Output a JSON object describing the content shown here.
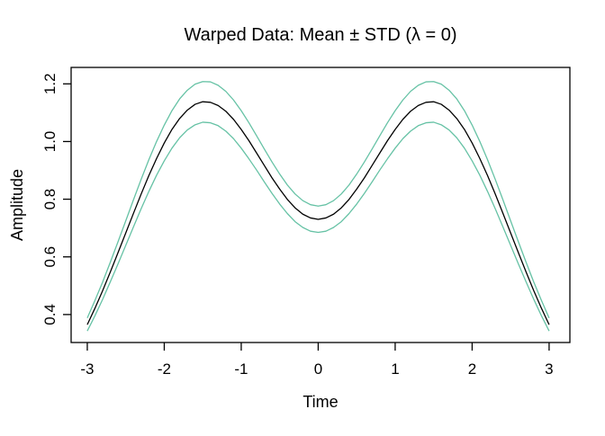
{
  "figure": {
    "background": "#ffffff",
    "text_color": "#000000"
  },
  "chart_data": {
    "type": "line",
    "title": "Warped Data: Mean ± STD (λ = 0)",
    "xlabel": "Time",
    "ylabel": "Amplitude",
    "grid": false,
    "legend": "none",
    "xlim": [
      -3.21,
      3.27
    ],
    "ylim": [
      0.303,
      1.257
    ],
    "xticks": [
      -3,
      -2,
      -1,
      0,
      1,
      2,
      3
    ],
    "xtick_labels": [
      "-3",
      "-2",
      "-1",
      "0",
      "1",
      "2",
      "3"
    ],
    "yticks": [
      0.4,
      0.6,
      0.8,
      1.0,
      1.2
    ],
    "ytick_labels": [
      "0.4",
      "0.6",
      "0.8",
      "1.0",
      "1.2"
    ],
    "x": [
      -3.0,
      -2.9,
      -2.8,
      -2.7,
      -2.6,
      -2.5,
      -2.4,
      -2.3,
      -2.2,
      -2.1,
      -2.0,
      -1.9,
      -1.8,
      -1.7,
      -1.6,
      -1.5,
      -1.4,
      -1.3,
      -1.2,
      -1.1,
      -1.0,
      -0.9,
      -0.8,
      -0.7,
      -0.6,
      -0.5,
      -0.4,
      -0.3,
      -0.2,
      -0.1,
      0.0,
      0.1,
      0.2,
      0.3,
      0.4,
      0.5,
      0.6,
      0.7,
      0.8,
      0.9,
      1.0,
      1.1,
      1.2,
      1.3,
      1.4,
      1.5,
      1.6,
      1.7,
      1.8,
      1.9,
      2.0,
      2.1,
      2.2,
      2.3,
      2.4,
      2.5,
      2.6,
      2.7,
      2.8,
      2.9,
      3.0
    ],
    "series": [
      {
        "name": "Mean + STD",
        "color": "#66C2A5",
        "values": [
          0.388,
          0.449,
          0.513,
          0.582,
          0.653,
          0.725,
          0.798,
          0.869,
          0.937,
          1.0,
          1.057,
          1.107,
          1.148,
          1.178,
          1.199,
          1.208,
          1.207,
          1.195,
          1.174,
          1.144,
          1.107,
          1.065,
          1.02,
          0.974,
          0.929,
          0.887,
          0.849,
          0.818,
          0.795,
          0.781,
          0.776,
          0.781,
          0.795,
          0.818,
          0.849,
          0.887,
          0.929,
          0.974,
          1.02,
          1.065,
          1.107,
          1.144,
          1.174,
          1.195,
          1.207,
          1.208,
          1.199,
          1.178,
          1.148,
          1.107,
          1.057,
          1.0,
          0.937,
          0.869,
          0.798,
          0.725,
          0.653,
          0.582,
          0.513,
          0.449,
          0.388
        ]
      },
      {
        "name": "Mean",
        "color": "#000000",
        "values": [
          0.365,
          0.422,
          0.483,
          0.548,
          0.615,
          0.683,
          0.751,
          0.818,
          0.882,
          0.941,
          0.995,
          1.042,
          1.08,
          1.109,
          1.129,
          1.138,
          1.136,
          1.125,
          1.105,
          1.077,
          1.042,
          1.003,
          0.96,
          0.917,
          0.874,
          0.835,
          0.799,
          0.77,
          0.748,
          0.735,
          0.73,
          0.735,
          0.748,
          0.77,
          0.799,
          0.835,
          0.874,
          0.917,
          0.96,
          1.003,
          1.042,
          1.077,
          1.105,
          1.125,
          1.136,
          1.138,
          1.129,
          1.109,
          1.08,
          1.042,
          0.995,
          0.941,
          0.882,
          0.818,
          0.751,
          0.683,
          0.615,
          0.548,
          0.483,
          0.422,
          0.365
        ]
      },
      {
        "name": "Mean − STD",
        "color": "#66C2A5",
        "values": [
          0.343,
          0.396,
          0.453,
          0.514,
          0.576,
          0.64,
          0.704,
          0.767,
          0.827,
          0.883,
          0.933,
          0.977,
          1.013,
          1.04,
          1.058,
          1.067,
          1.065,
          1.055,
          1.036,
          1.01,
          0.977,
          0.94,
          0.901,
          0.86,
          0.82,
          0.783,
          0.75,
          0.722,
          0.702,
          0.689,
          0.685,
          0.689,
          0.702,
          0.722,
          0.75,
          0.783,
          0.82,
          0.86,
          0.901,
          0.94,
          0.977,
          1.01,
          1.036,
          1.055,
          1.065,
          1.067,
          1.058,
          1.04,
          1.013,
          0.977,
          0.933,
          0.883,
          0.827,
          0.767,
          0.704,
          0.64,
          0.576,
          0.514,
          0.453,
          0.396,
          0.343
        ]
      }
    ]
  }
}
